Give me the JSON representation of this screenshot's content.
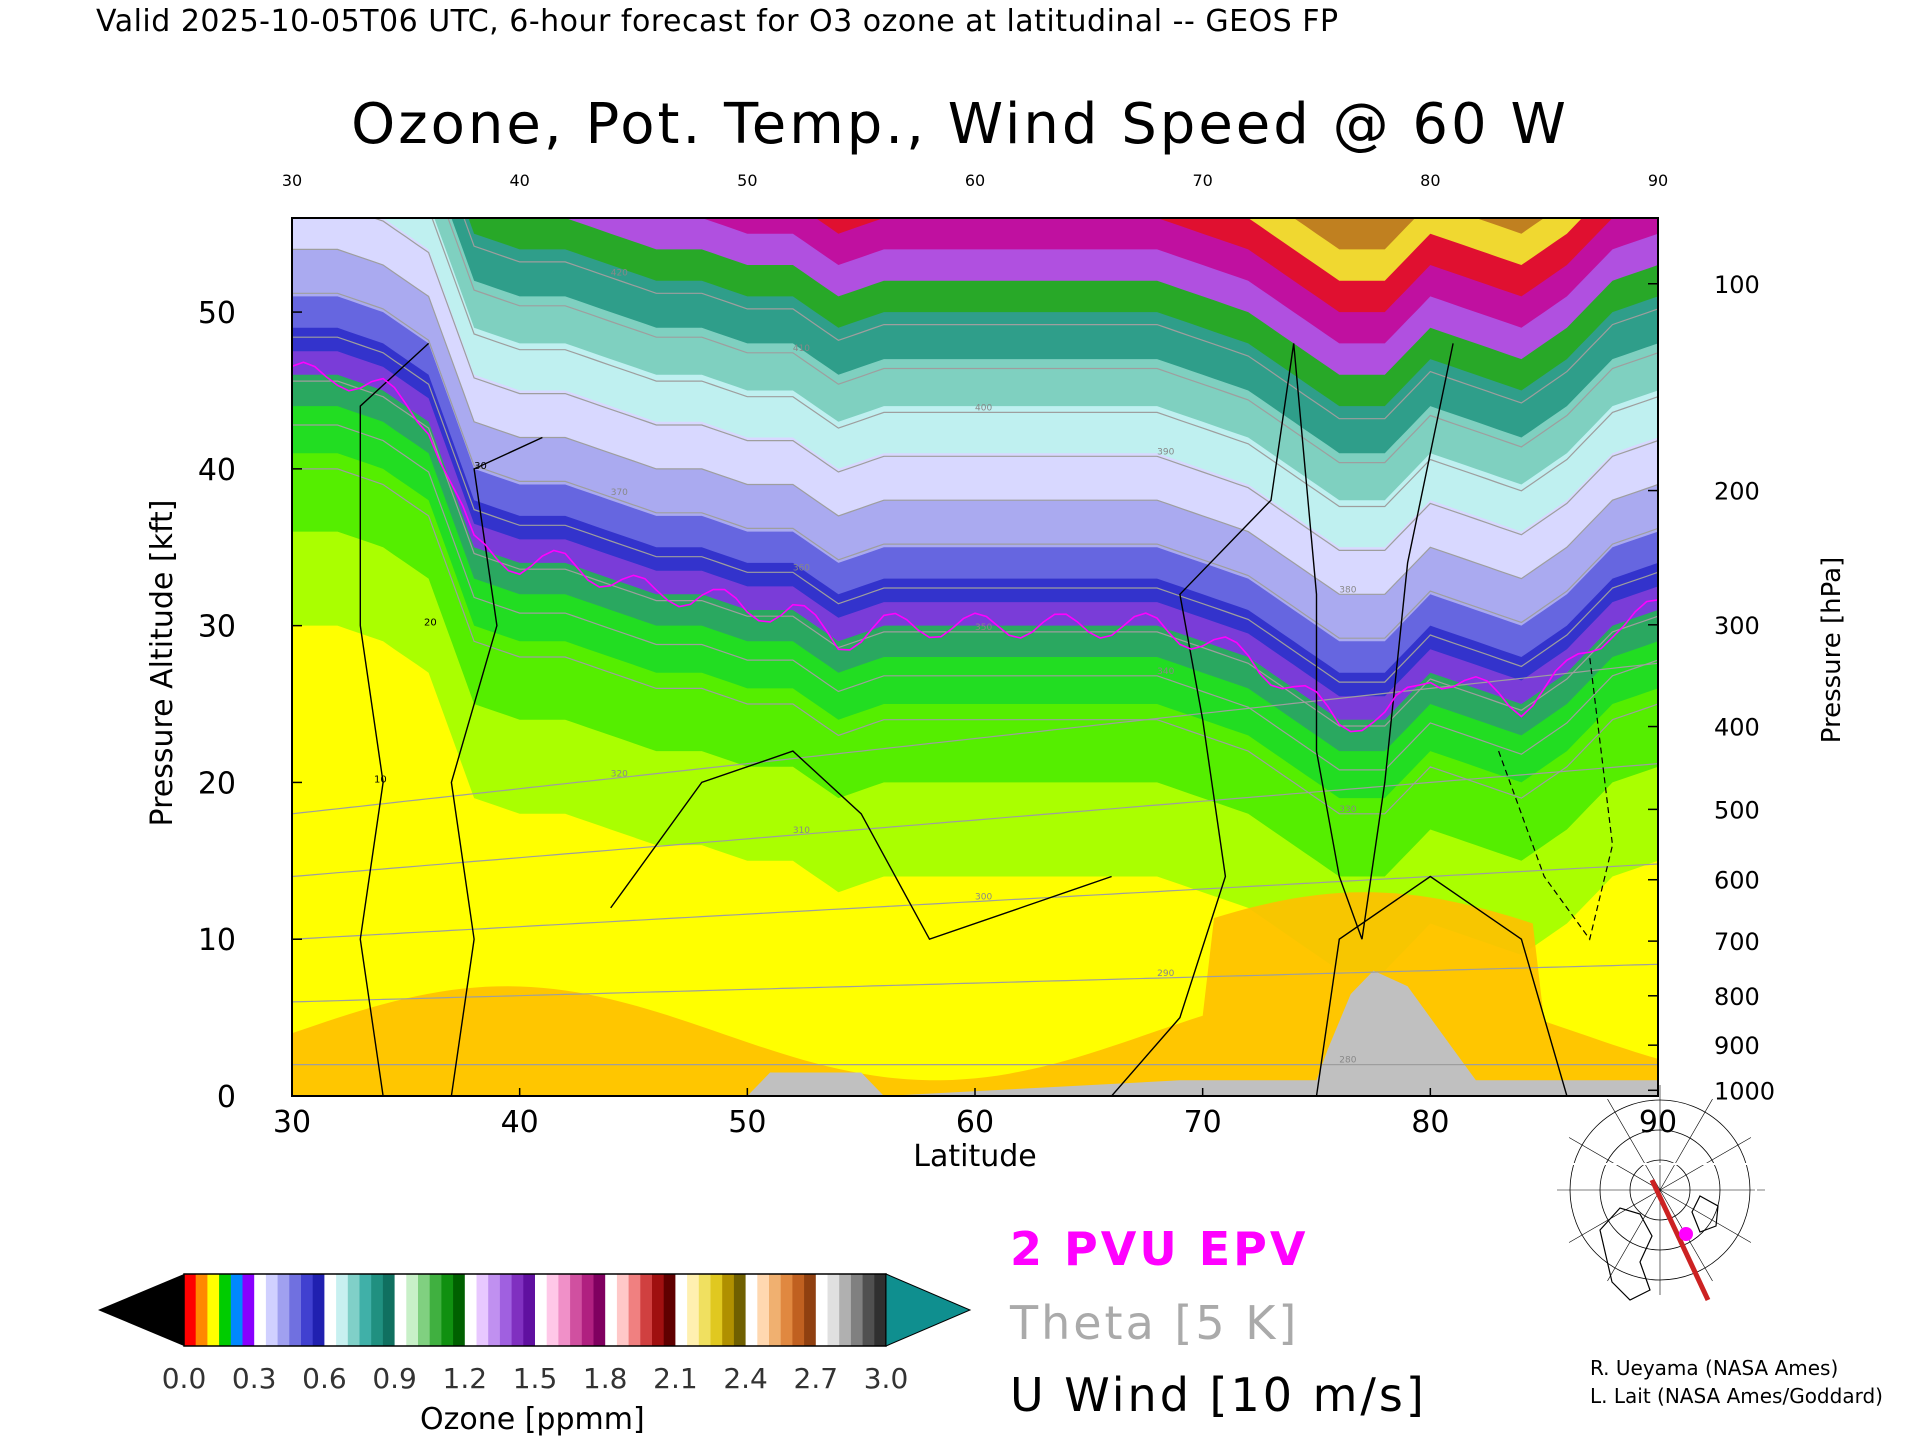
{
  "header": {
    "valid_line": "Valid 2025-10-05T06 UTC, 6-hour forecast for O3 ozone at latitudinal -- GEOS FP",
    "title": "Ozone, Pot. Temp., Wind Speed @ 60 W"
  },
  "legend": {
    "epv": "2 PVU EPV",
    "theta": "Theta [5 K]",
    "uwind": "U Wind [10 m/s]"
  },
  "colorbar": {
    "label": "Ozone [ppmm]",
    "ticks": [
      "0.0",
      "0.3",
      "0.6",
      "0.9",
      "1.2",
      "1.5",
      "1.8",
      "2.1",
      "2.4",
      "2.7",
      "3.0"
    ],
    "min": 0.0,
    "max": 3.0
  },
  "credits": {
    "line1": "R. Ueyama (NASA Ames)",
    "line2": "L. Lait (NASA Ames/Goddard)"
  },
  "colors": {
    "epv": "#ff00ff",
    "theta": "#9e9e9e",
    "terrain": "#c0c0c0",
    "section_line": "#cc2222"
  },
  "chart_data": {
    "type": "heatmap",
    "xlabel": "Latitude",
    "ylabel": "Pressure Altitude [kft]",
    "y2label": "Pressure [hPa]",
    "xlim": [
      30,
      90
    ],
    "ylim": [
      0,
      56
    ],
    "x_ticks": [
      "30",
      "40",
      "50",
      "60",
      "70",
      "80",
      "90"
    ],
    "y_ticks": [
      "0",
      "10",
      "20",
      "30",
      "40",
      "50"
    ],
    "pressure_ticks": [
      "100",
      "200",
      "300",
      "400",
      "500",
      "600",
      "700",
      "800",
      "900",
      "1000"
    ],
    "theta_labels": [
      "420",
      "410",
      "400",
      "390",
      "380",
      "370",
      "360",
      "350",
      "340",
      "330",
      "320",
      "310",
      "300",
      "290",
      "280"
    ],
    "uwind_labels": [
      "10",
      "20",
      "30"
    ],
    "tropopause_kft": [
      [
        30,
        46
      ],
      [
        32,
        46
      ],
      [
        34,
        45
      ],
      [
        36,
        43
      ],
      [
        38,
        35
      ],
      [
        40,
        34
      ],
      [
        42,
        34
      ],
      [
        44,
        33
      ],
      [
        46,
        32
      ],
      [
        48,
        32
      ],
      [
        50,
        31
      ],
      [
        52,
        31
      ],
      [
        54,
        29
      ],
      [
        56,
        30
      ],
      [
        58,
        30
      ],
      [
        60,
        30
      ],
      [
        62,
        30
      ],
      [
        64,
        30
      ],
      [
        66,
        30
      ],
      [
        68,
        30
      ],
      [
        70,
        29
      ],
      [
        72,
        28
      ],
      [
        74,
        26
      ],
      [
        76,
        24
      ],
      [
        78,
        24
      ],
      [
        80,
        27
      ],
      [
        82,
        26
      ],
      [
        84,
        25
      ],
      [
        86,
        27
      ],
      [
        88,
        30
      ],
      [
        90,
        31
      ]
    ],
    "terrain_kft": [
      [
        50,
        0
      ],
      [
        51,
        1.5
      ],
      [
        55,
        1.5
      ],
      [
        56,
        0
      ],
      [
        69,
        1
      ],
      [
        75,
        1
      ],
      [
        75.5,
        3
      ],
      [
        76.5,
        6.5
      ],
      [
        77.5,
        8
      ],
      [
        79,
        7
      ],
      [
        80,
        5
      ],
      [
        81,
        3
      ],
      [
        82,
        1
      ],
      [
        86,
        1
      ],
      [
        90,
        1
      ]
    ]
  }
}
